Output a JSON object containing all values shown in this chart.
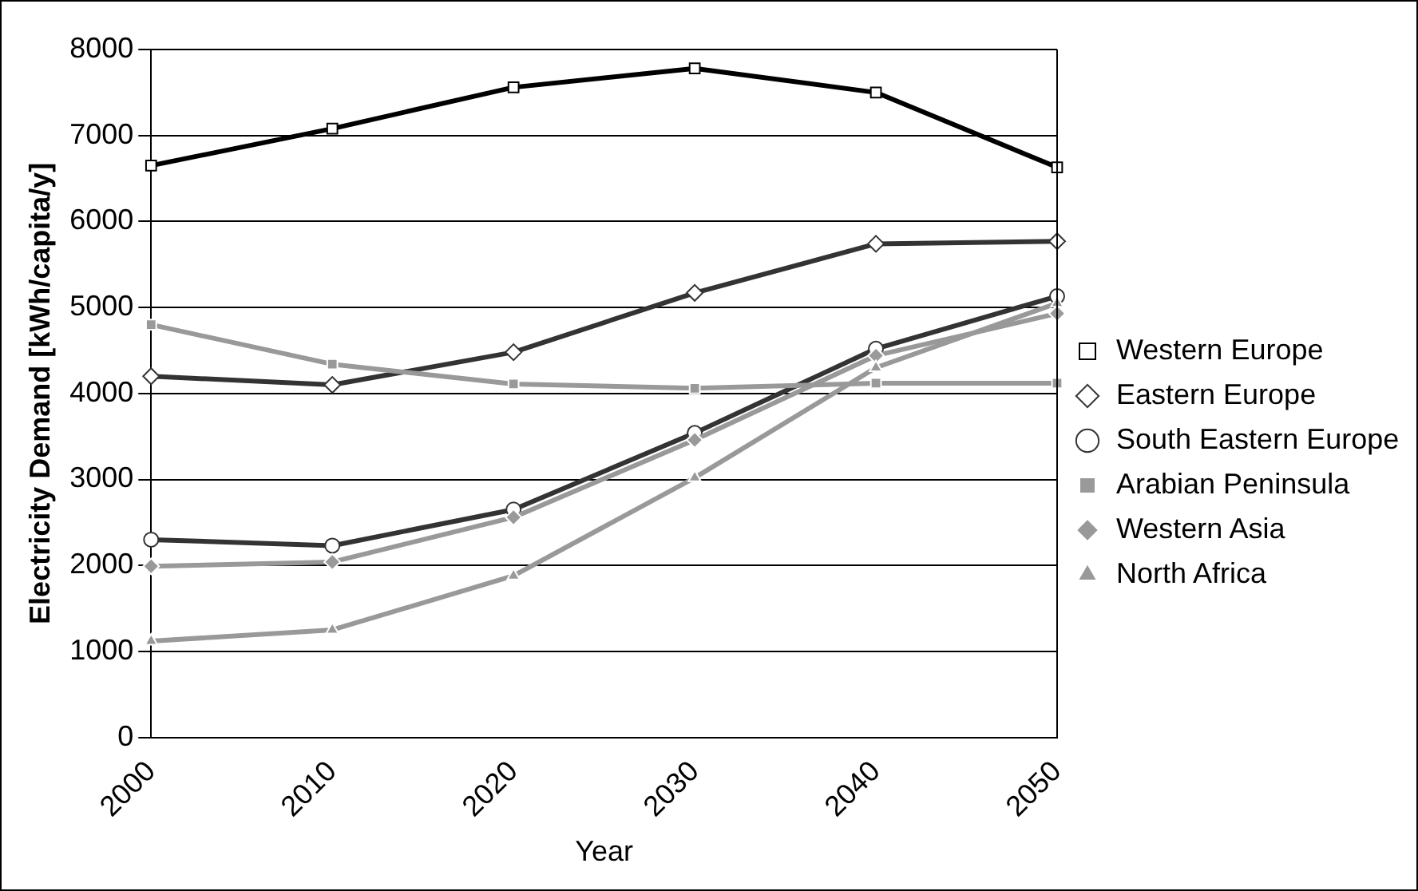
{
  "chart_data": {
    "type": "line",
    "xlabel": "Year",
    "ylabel": "Electricity Demand [kWh/capita/y]",
    "categories": [
      "2000",
      "2010",
      "2020",
      "2030",
      "2040",
      "2050"
    ],
    "series": [
      {
        "name": "Western Europe",
        "color": "#000000",
        "marker": "square",
        "values": [
          6650,
          7080,
          7560,
          7780,
          7500,
          6630
        ]
      },
      {
        "name": "Eastern Europe",
        "color": "#333333",
        "marker": "diamond",
        "values": [
          4200,
          4100,
          4480,
          5170,
          5740,
          5770
        ]
      },
      {
        "name": "South Eastern Europe",
        "color": "#333333",
        "marker": "circle",
        "values": [
          2300,
          2230,
          2650,
          3540,
          4520,
          5130
        ]
      },
      {
        "name": "Arabian Peninsula",
        "color": "#999999",
        "marker": "square",
        "values": [
          4800,
          4340,
          4110,
          4060,
          4120,
          4120
        ]
      },
      {
        "name": "Western Asia",
        "color": "#999999",
        "marker": "diamond",
        "values": [
          1990,
          2040,
          2560,
          3460,
          4440,
          4930
        ]
      },
      {
        "name": "North Africa",
        "color": "#999999",
        "marker": "triangle",
        "values": [
          1120,
          1250,
          1880,
          3020,
          4300,
          5050
        ]
      }
    ],
    "ylim": [
      0,
      8000
    ],
    "yticks": [
      0,
      1000,
      2000,
      3000,
      4000,
      5000,
      6000,
      7000,
      8000
    ],
    "grid": "y",
    "legend": "right"
  }
}
